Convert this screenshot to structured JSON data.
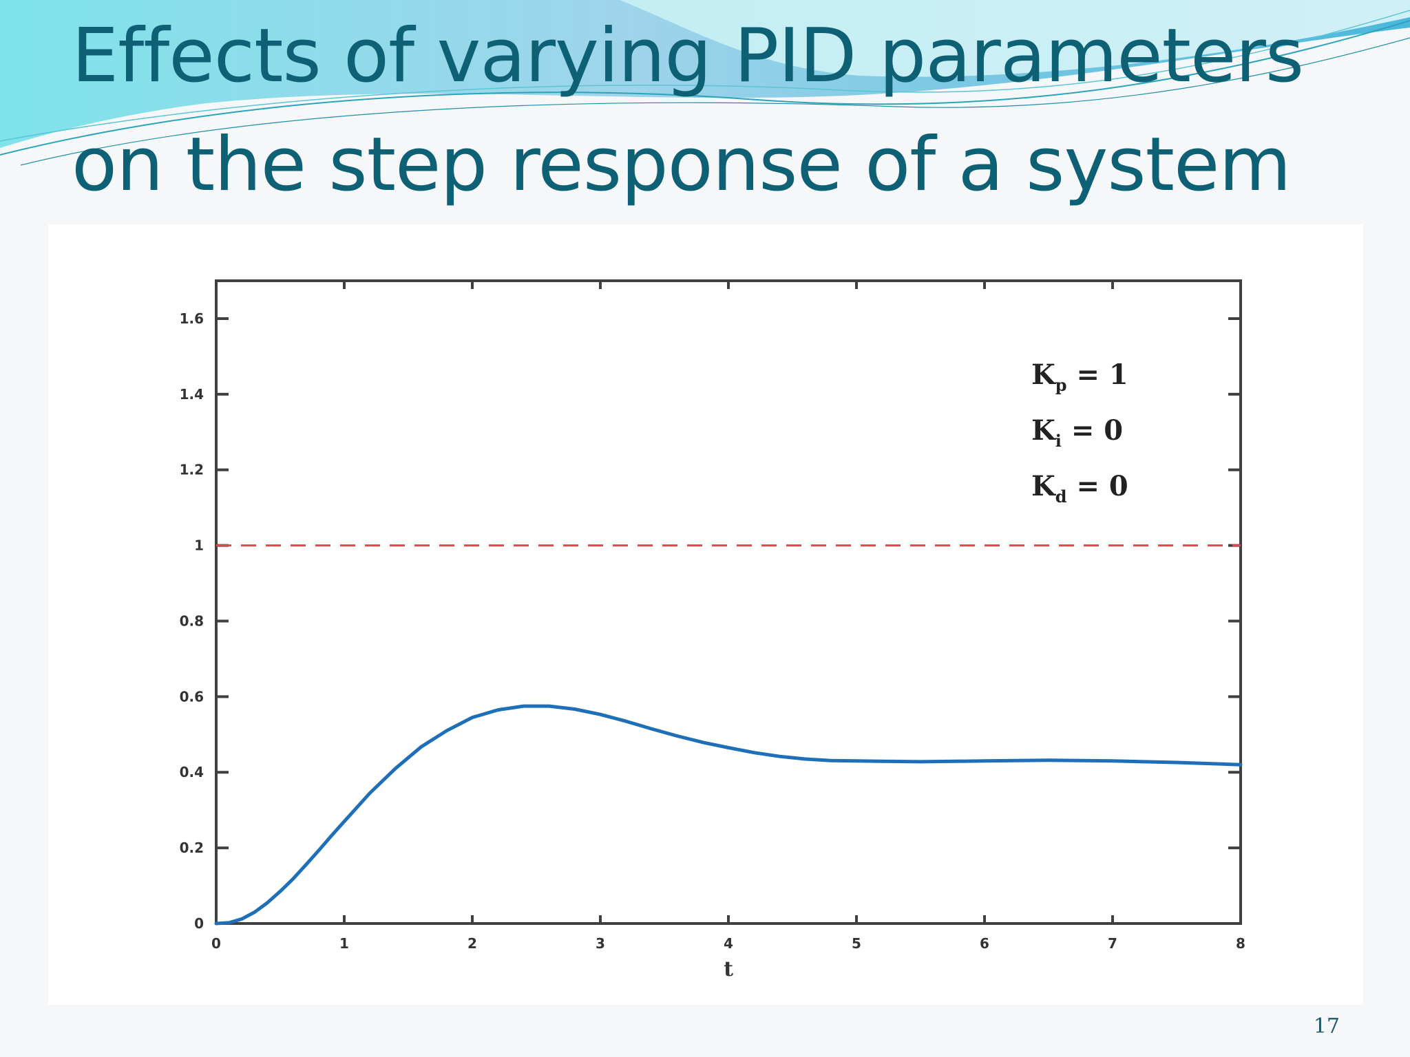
{
  "slide": {
    "title_line_1": "Effects of varying PID parameters",
    "title_line_2": "on the step response of a system",
    "page_number": "17"
  },
  "colors": {
    "title": "#0e6075",
    "response_line": "#1f6fb8",
    "reference_line": "#e0474c",
    "axes": "#404040"
  },
  "chart_data": {
    "type": "line",
    "xlabel": "t",
    "ylabel": "",
    "title": "",
    "xlim": [
      0,
      8
    ],
    "ylim": [
      0,
      1.7
    ],
    "x_ticks": [
      "0",
      "1",
      "2",
      "3",
      "4",
      "5",
      "6",
      "7",
      "8"
    ],
    "y_ticks": [
      "0",
      "0.2",
      "0.4",
      "0.6",
      "0.8",
      "1",
      "1.2",
      "1.4",
      "1.6"
    ],
    "reference_line": {
      "y": 1,
      "style": "dashed",
      "color": "#e0474c"
    },
    "annotations": [
      {
        "main": "K",
        "sub": "p",
        "rest": " = 1"
      },
      {
        "main": "K",
        "sub": "i",
        "rest": " = 0"
      },
      {
        "main": "K",
        "sub": "d",
        "rest": " = 0"
      }
    ],
    "series": [
      {
        "x": [
          0,
          0.1,
          0.2,
          0.3,
          0.4,
          0.5,
          0.6,
          0.7,
          0.8,
          0.9,
          1.0,
          1.2,
          1.4,
          1.6,
          1.8,
          2.0,
          2.2,
          2.4,
          2.6,
          2.8,
          3.0,
          3.2,
          3.4,
          3.6,
          3.8,
          4.0,
          4.2,
          4.4,
          4.6,
          4.8,
          5.0,
          5.5,
          6.0,
          6.5,
          7.0,
          7.5,
          8.0
        ],
        "y": [
          0,
          0.002,
          0.012,
          0.03,
          0.055,
          0.085,
          0.118,
          0.155,
          0.193,
          0.232,
          0.27,
          0.345,
          0.41,
          0.467,
          0.51,
          0.545,
          0.565,
          0.575,
          0.575,
          0.567,
          0.553,
          0.535,
          0.515,
          0.496,
          0.479,
          0.465,
          0.452,
          0.442,
          0.435,
          0.431,
          0.43,
          0.428,
          0.43,
          0.432,
          0.43,
          0.426,
          0.42
        ]
      }
    ]
  }
}
